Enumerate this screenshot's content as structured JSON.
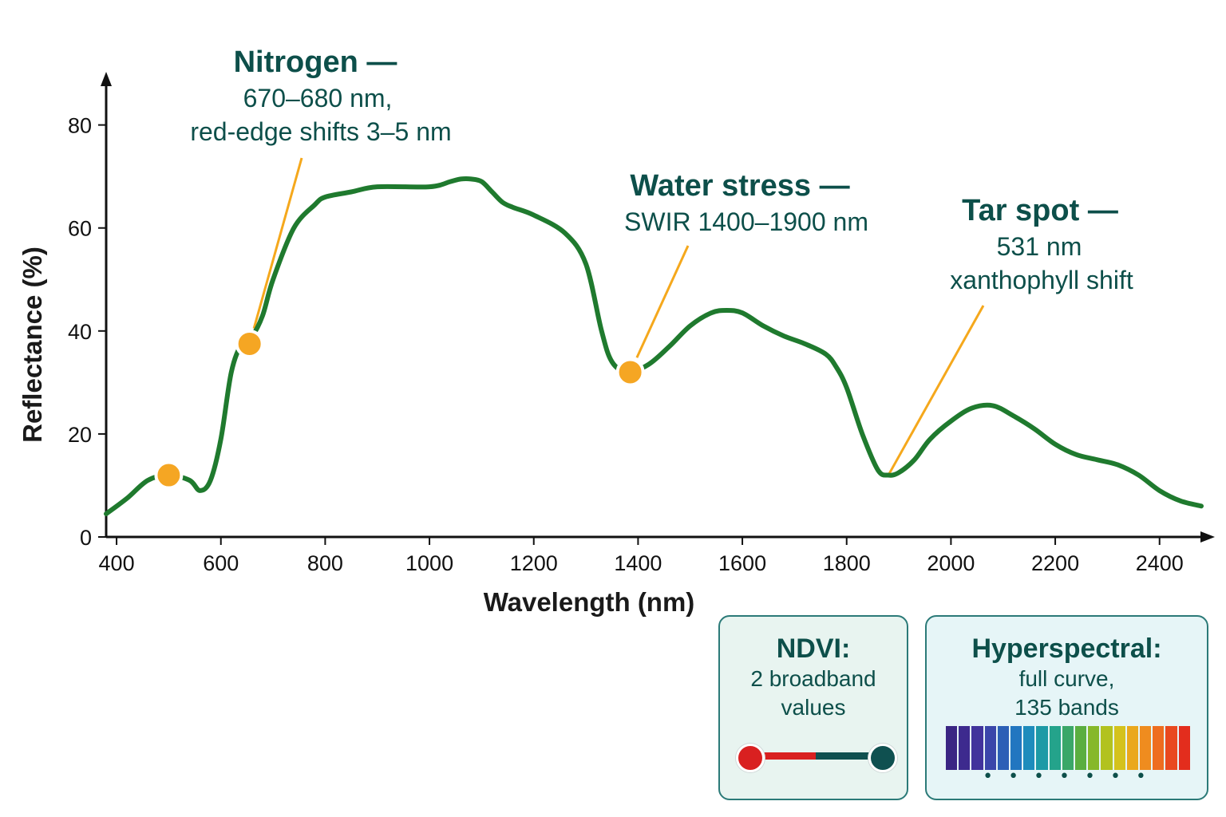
{
  "chart_data": {
    "type": "line",
    "title": "",
    "xlabel": "Wavelength (nm)",
    "ylabel": "Reflectance (%)",
    "xlim": [
      380,
      2480
    ],
    "ylim": [
      0,
      88
    ],
    "x_ticks": [
      400,
      600,
      800,
      1000,
      1200,
      1400,
      1600,
      1800,
      2000,
      2200,
      2400
    ],
    "y_ticks": [
      0,
      20,
      40,
      60,
      80
    ],
    "grid": false,
    "legend": "none",
    "series": [
      {
        "color": "#1f7a2e",
        "x": [
          380,
          420,
          460,
          500,
          540,
          560,
          580,
          600,
          620,
          640,
          660,
          680,
          700,
          740,
          780,
          800,
          850,
          900,
          1000,
          1040,
          1060,
          1080,
          1100,
          1120,
          1140,
          1160,
          1200,
          1260,
          1300,
          1330,
          1350,
          1380,
          1420,
          1460,
          1500,
          1540,
          1570,
          1600,
          1640,
          1680,
          1720,
          1760,
          1780,
          1800,
          1830,
          1860,
          1880,
          1900,
          1930,
          1960,
          2000,
          2040,
          2080,
          2120,
          2160,
          2200,
          2240,
          2280,
          2320,
          2360,
          2400,
          2440,
          2480
        ],
        "y": [
          4.5,
          7.5,
          11,
          12,
          11,
          9,
          11,
          19,
          32,
          37.5,
          39,
          43,
          50,
          60,
          64.5,
          66,
          67,
          68,
          68,
          69,
          69.5,
          69.5,
          69,
          67,
          65,
          64,
          62.5,
          59,
          53,
          40,
          34,
          32,
          33.5,
          37,
          41,
          43.5,
          44,
          43.5,
          41,
          39,
          37.5,
          35.5,
          33,
          29,
          20,
          13,
          12,
          12.5,
          15,
          19,
          22.5,
          25,
          25.5,
          23.5,
          21,
          18,
          16,
          15,
          14,
          12,
          9,
          7,
          6
        ]
      }
    ],
    "markers": [
      {
        "x": 500,
        "y": 12,
        "color": "#f5a623"
      },
      {
        "x": 655,
        "y": 37.5,
        "color": "#f5a623"
      },
      {
        "x": 1385,
        "y": 32,
        "color": "#f5a623"
      }
    ],
    "annotations": [
      {
        "heading": "Nitrogen —",
        "lines": [
          "670–680 nm,",
          "red-edge shifts 3–5 nm"
        ],
        "target_x": 655,
        "target_y": 37.5
      },
      {
        "heading": "Water stress —",
        "lines": [
          "SWIR 1400–1900 nm"
        ],
        "target_x": 1385,
        "target_y": 32
      },
      {
        "heading": "Tar spot —",
        "lines": [
          "531 nm",
          "xanthophyll shift"
        ],
        "target_x": 1880,
        "target_y": 12
      }
    ]
  },
  "ndvi_box": {
    "title": "NDVI:",
    "lines": [
      "2 broadband",
      "values"
    ],
    "colors": {
      "left": "#d92020",
      "right": "#0f5050"
    }
  },
  "hyper_box": {
    "title": "Hyperspectral:",
    "lines": [
      "full curve,",
      "135 bands"
    ],
    "band_colors": [
      "#3a2583",
      "#3d2a8e",
      "#41339c",
      "#3a46aa",
      "#2c5fb6",
      "#2276c0",
      "#1e8cbc",
      "#1d9aa6",
      "#24a38b",
      "#3aa768",
      "#5aae3f",
      "#86b82a",
      "#b2c21f",
      "#d4c21c",
      "#eaa81d",
      "#ef8c1f",
      "#ee6d1f",
      "#e9491f",
      "#e32d1d"
    ],
    "dots": "• • • • • • •"
  }
}
